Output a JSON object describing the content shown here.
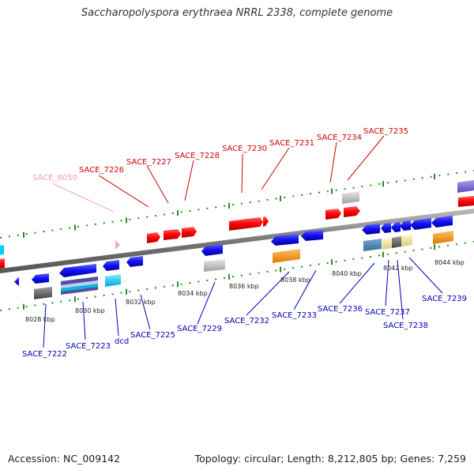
{
  "title": "Saccharopolyspora erythraea NRRL 2338, complete genome",
  "footer": {
    "accession": "Accession: NC_009142",
    "summary": "Topology: circular; Length: 8,212,805 bp; Genes: 7,259"
  },
  "colors": {
    "forward": "#ff0000",
    "reverse": "#1010ee",
    "pseudo": "#f8a0c8",
    "grey": "#c8c8c8",
    "orange": "#ff9900",
    "cyan": "#00ccff",
    "backbone": "#888888",
    "ticks": "#2a8a2a"
  },
  "ticks": [
    {
      "label": "8028 kbp"
    },
    {
      "label": "8030 kbp"
    },
    {
      "label": "8032 kbp"
    },
    {
      "label": "8034 kbp"
    },
    {
      "label": "8036 kbp"
    },
    {
      "label": "8038 kbp"
    },
    {
      "label": "8040 kbp"
    },
    {
      "label": "8042 kbp"
    },
    {
      "label": "8044 kbp"
    }
  ],
  "forward_labels": [
    {
      "text": "SACE_7226"
    },
    {
      "text": "SACE_7227"
    },
    {
      "text": "SACE_7228"
    },
    {
      "text": "SACE_7230"
    },
    {
      "text": "SACE_7231"
    },
    {
      "text": "SACE_7234"
    },
    {
      "text": "SACE_7235"
    }
  ],
  "pseudo_labels": [
    {
      "text": "SACE_8050"
    }
  ],
  "reverse_labels": [
    {
      "text": "SACE_7222"
    },
    {
      "text": "SACE_7223"
    },
    {
      "text": "dcd"
    },
    {
      "text": "SACE_7225"
    },
    {
      "text": "SACE_7229"
    },
    {
      "text": "SACE_7232"
    },
    {
      "text": "SACE_7233"
    },
    {
      "text": "SACE_7236"
    },
    {
      "text": "SACE_7237"
    },
    {
      "text": "SACE_7238"
    },
    {
      "text": "SACE_7239"
    }
  ]
}
